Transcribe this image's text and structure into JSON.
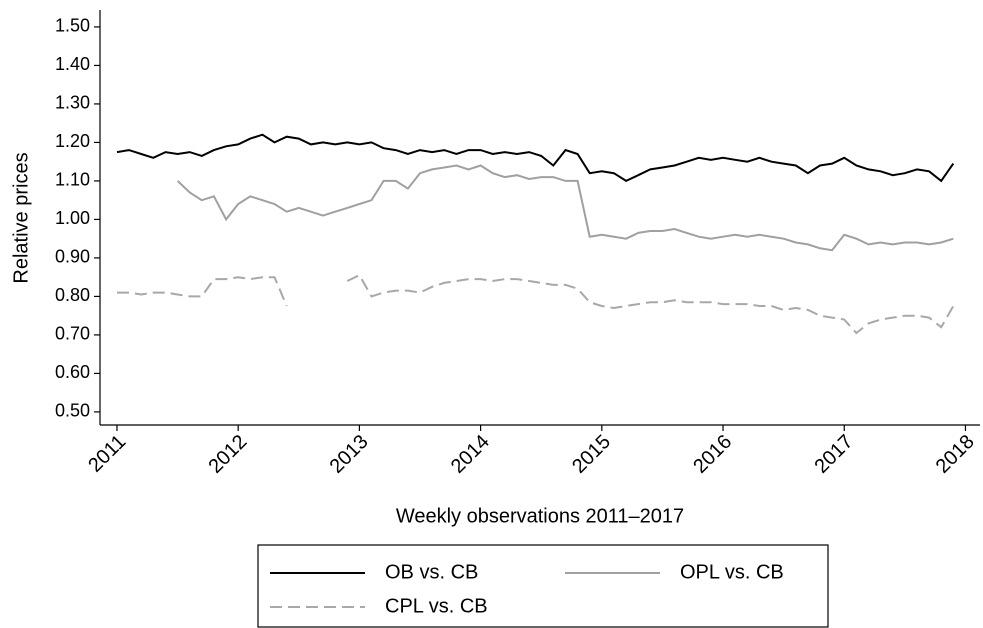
{
  "chart_data": {
    "type": "line",
    "xlabel": "Weekly observations 2011–2017",
    "ylabel": "Relative prices",
    "x": [
      2011.0,
      2011.1,
      2011.2,
      2011.3,
      2011.4,
      2011.5,
      2011.6,
      2011.7,
      2011.8,
      2011.9,
      2012.0,
      2012.1,
      2012.2,
      2012.3,
      2012.4,
      2012.5,
      2012.6,
      2012.7,
      2012.8,
      2012.9,
      2013.0,
      2013.1,
      2013.2,
      2013.3,
      2013.4,
      2013.5,
      2013.6,
      2013.7,
      2013.8,
      2013.9,
      2014.0,
      2014.1,
      2014.2,
      2014.3,
      2014.4,
      2014.5,
      2014.6,
      2014.7,
      2014.8,
      2014.9,
      2015.0,
      2015.1,
      2015.2,
      2015.3,
      2015.4,
      2015.5,
      2015.6,
      2015.7,
      2015.8,
      2015.9,
      2016.0,
      2016.1,
      2016.2,
      2016.3,
      2016.4,
      2016.5,
      2016.6,
      2016.7,
      2016.8,
      2016.9,
      2017.0,
      2017.1,
      2017.2,
      2017.3,
      2017.4,
      2017.5,
      2017.6,
      2017.7,
      2017.8,
      2017.9
    ],
    "series": [
      {
        "name": "OB vs. CB",
        "color": "#000000",
        "line_style": "solid",
        "values": [
          1.175,
          1.18,
          1.17,
          1.16,
          1.175,
          1.17,
          1.175,
          1.165,
          1.18,
          1.19,
          1.195,
          1.21,
          1.22,
          1.2,
          1.215,
          1.21,
          1.195,
          1.2,
          1.195,
          1.2,
          1.195,
          1.2,
          1.185,
          1.18,
          1.17,
          1.18,
          1.175,
          1.18,
          1.17,
          1.18,
          1.18,
          1.17,
          1.175,
          1.17,
          1.175,
          1.165,
          1.14,
          1.18,
          1.17,
          1.12,
          1.125,
          1.12,
          1.1,
          1.115,
          1.13,
          1.135,
          1.14,
          1.15,
          1.16,
          1.155,
          1.16,
          1.155,
          1.15,
          1.16,
          1.15,
          1.145,
          1.14,
          1.12,
          1.14,
          1.145,
          1.16,
          1.14,
          1.13,
          1.125,
          1.115,
          1.12,
          1.13,
          1.125,
          1.1,
          1.145
        ]
      },
      {
        "name": "OPL vs. CB",
        "color": "#a0a0a0",
        "line_style": "solid",
        "values": [
          null,
          null,
          null,
          null,
          null,
          1.1,
          1.07,
          1.05,
          1.06,
          1.0,
          1.04,
          1.06,
          1.05,
          1.04,
          1.02,
          1.03,
          1.02,
          1.01,
          1.02,
          1.03,
          1.04,
          1.05,
          1.1,
          1.1,
          1.08,
          1.12,
          1.13,
          1.135,
          1.14,
          1.13,
          1.14,
          1.12,
          1.11,
          1.115,
          1.105,
          1.11,
          1.11,
          1.1,
          1.1,
          0.955,
          0.96,
          0.955,
          0.95,
          0.965,
          0.97,
          0.97,
          0.975,
          0.965,
          0.955,
          0.95,
          0.955,
          0.96,
          0.955,
          0.96,
          0.955,
          0.95,
          0.94,
          0.935,
          0.925,
          0.92,
          0.96,
          0.95,
          0.935,
          0.94,
          0.935,
          0.94,
          0.94,
          0.935,
          0.94,
          0.95
        ]
      },
      {
        "name": "CPL vs. CB",
        "color": "#a8a8a8",
        "line_style": "dashed",
        "values": [
          0.81,
          0.81,
          0.805,
          0.81,
          0.81,
          0.805,
          0.8,
          0.8,
          0.845,
          0.845,
          0.85,
          0.845,
          0.85,
          0.85,
          0.775,
          null,
          null,
          null,
          null,
          0.84,
          0.855,
          0.8,
          0.81,
          0.815,
          0.815,
          0.81,
          0.825,
          0.835,
          0.84,
          0.845,
          0.845,
          0.84,
          0.845,
          0.845,
          0.84,
          0.835,
          0.83,
          0.83,
          0.82,
          0.785,
          0.775,
          0.77,
          0.775,
          0.78,
          0.785,
          0.785,
          0.79,
          0.785,
          0.785,
          0.785,
          0.78,
          0.78,
          0.78,
          0.775,
          0.775,
          0.765,
          0.77,
          0.765,
          0.75,
          0.745,
          0.74,
          0.705,
          0.73,
          0.74,
          0.745,
          0.75,
          0.75,
          0.745,
          0.72,
          0.775
        ]
      }
    ],
    "xlim": [
      2010.86,
      2018.12
    ],
    "xticks": [
      2011,
      2012,
      2013,
      2014,
      2015,
      2016,
      2017,
      2018
    ],
    "ylim": [
      0.466,
      1.544
    ],
    "yticks": [
      {
        "value": 0.5,
        "label": "0.50"
      },
      {
        "value": 0.6,
        "label": "0.60"
      },
      {
        "value": 0.7,
        "label": "0.70"
      },
      {
        "value": 0.8,
        "label": "0.80"
      },
      {
        "value": 0.9,
        "label": "0.90"
      },
      {
        "value": 1.0,
        "label": "1.00"
      },
      {
        "value": 1.1,
        "label": "1.10"
      },
      {
        "value": 1.2,
        "label": "1.20"
      },
      {
        "value": 1.3,
        "label": "1.30"
      },
      {
        "value": 1.4,
        "label": "1.40"
      },
      {
        "value": 1.5,
        "label": "1.50"
      }
    ],
    "grid": false,
    "legend": "bottom"
  }
}
